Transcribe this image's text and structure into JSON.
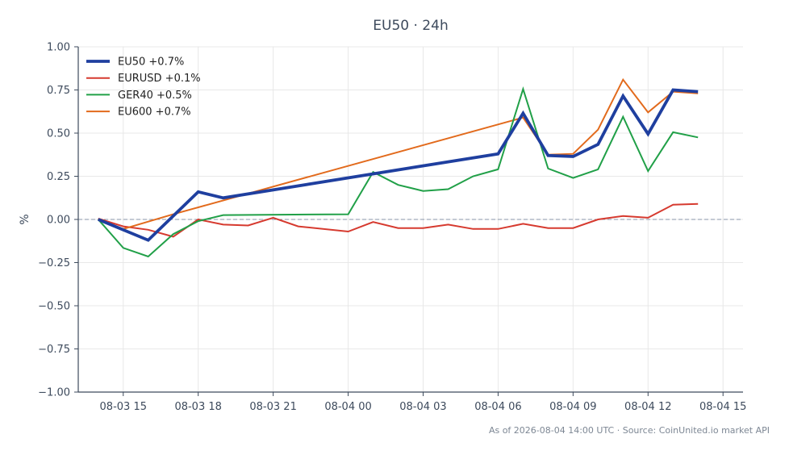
{
  "chart_data": {
    "type": "line",
    "title": "EU50 · 24h",
    "xlabel": "",
    "ylabel": "%",
    "ylim": [
      -1.0,
      1.0
    ],
    "yticks": [
      -1.0,
      -0.75,
      -0.5,
      -0.25,
      0.0,
      0.25,
      0.5,
      0.75,
      1.0
    ],
    "ytick_labels": [
      "−1.00",
      "−0.75",
      "−0.50",
      "−0.25",
      "0.00",
      "0.25",
      "0.50",
      "0.75",
      "1.00"
    ],
    "xticks": [
      "2026-08-03 15:00",
      "2026-08-03 18:00",
      "2026-08-03 21:00",
      "2026-08-04 00:00",
      "2026-08-04 03:00",
      "2026-08-04 06:00",
      "2026-08-04 09:00",
      "2026-08-04 12:00",
      "2026-08-04 15:00"
    ],
    "xtick_labels": [
      "08-03 15",
      "08-03 18",
      "08-03 21",
      "08-04 00",
      "08-04 03",
      "08-04 06",
      "08-04 09",
      "08-04 12",
      "08-04 15"
    ],
    "xlim": [
      "2026-08-03 13:12",
      "2026-08-04 15:48"
    ],
    "grid": true,
    "legend_position": "top-left",
    "reference_line": 0.0,
    "series": [
      {
        "name": "EU50 +0.7%",
        "color": "#1f3f9f",
        "x": [
          "2026-08-03 14:00",
          "2026-08-03 16:00",
          "2026-08-03 18:00",
          "2026-08-03 19:00",
          "2026-08-04 06:00",
          "2026-08-04 07:00",
          "2026-08-04 08:00",
          "2026-08-04 09:00",
          "2026-08-04 10:00",
          "2026-08-04 11:00",
          "2026-08-04 12:00",
          "2026-08-04 13:00",
          "2026-08-04 14:00"
        ],
        "values": [
          0.0,
          -0.12,
          0.16,
          0.125,
          0.38,
          0.615,
          0.37,
          0.365,
          0.435,
          0.715,
          0.495,
          0.75,
          0.74
        ]
      },
      {
        "name": "EURUSD +0.1%",
        "color": "#d63a2f",
        "x": [
          "2026-08-03 14:00",
          "2026-08-03 15:00",
          "2026-08-03 16:00",
          "2026-08-03 17:00",
          "2026-08-03 18:00",
          "2026-08-03 19:00",
          "2026-08-03 20:00",
          "2026-08-03 21:00",
          "2026-08-03 22:00",
          "2026-08-04 00:00",
          "2026-08-04 01:00",
          "2026-08-04 02:00",
          "2026-08-04 03:00",
          "2026-08-04 04:00",
          "2026-08-04 05:00",
          "2026-08-04 06:00",
          "2026-08-04 07:00",
          "2026-08-04 08:00",
          "2026-08-04 09:00",
          "2026-08-04 10:00",
          "2026-08-04 11:00",
          "2026-08-04 12:00",
          "2026-08-04 13:00",
          "2026-08-04 14:00"
        ],
        "values": [
          0.005,
          -0.04,
          -0.06,
          -0.1,
          0.0,
          -0.03,
          -0.035,
          0.01,
          -0.04,
          -0.07,
          -0.015,
          -0.05,
          -0.05,
          -0.03,
          -0.055,
          -0.055,
          -0.025,
          -0.05,
          -0.05,
          0.0,
          0.02,
          0.01,
          0.085,
          0.09
        ]
      },
      {
        "name": "GER40 +0.5%",
        "color": "#21a048",
        "x": [
          "2026-08-03 14:00",
          "2026-08-03 15:00",
          "2026-08-03 16:00",
          "2026-08-03 17:00",
          "2026-08-03 18:00",
          "2026-08-03 19:00",
          "2026-08-04 00:00",
          "2026-08-04 01:00",
          "2026-08-04 02:00",
          "2026-08-04 03:00",
          "2026-08-04 04:00",
          "2026-08-04 05:00",
          "2026-08-04 06:00",
          "2026-08-04 07:00",
          "2026-08-04 08:00",
          "2026-08-04 09:00",
          "2026-08-04 10:00",
          "2026-08-04 11:00",
          "2026-08-04 12:00",
          "2026-08-04 13:00",
          "2026-08-04 14:00"
        ],
        "values": [
          0.0,
          -0.165,
          -0.215,
          -0.085,
          -0.01,
          0.025,
          0.03,
          0.275,
          0.2,
          0.165,
          0.175,
          0.25,
          0.29,
          0.755,
          0.295,
          0.24,
          0.29,
          0.595,
          0.28,
          0.505,
          0.475
        ]
      },
      {
        "name": "EU600 +0.7%",
        "color": "#e26a1c",
        "x": [
          "2026-08-03 14:00",
          "2026-08-03 15:00",
          "2026-08-03 17:00",
          "2026-08-04 07:00",
          "2026-08-04 08:00",
          "2026-08-04 09:00",
          "2026-08-04 10:00",
          "2026-08-04 11:00",
          "2026-08-04 12:00",
          "2026-08-04 13:00",
          "2026-08-04 14:00"
        ],
        "values": [
          0.0,
          -0.055,
          0.03,
          0.59,
          0.375,
          0.38,
          0.52,
          0.81,
          0.62,
          0.74,
          0.73
        ]
      }
    ]
  },
  "footnote": "As of 2026-08-04 14:00 UTC · Source: CoinUnited.io market API"
}
